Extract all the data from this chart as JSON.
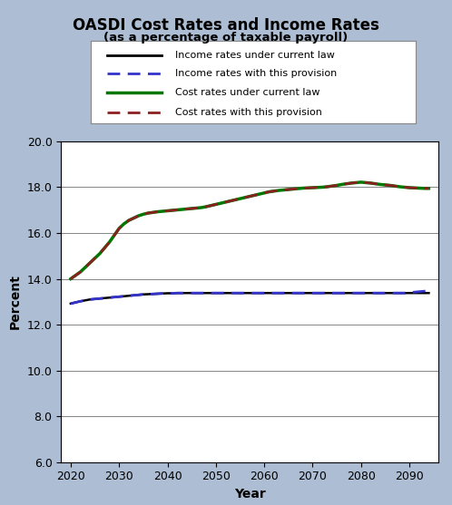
{
  "title": "OASDI Cost Rates and Income Rates",
  "subtitle": "(as a percentage of taxable payroll)",
  "xlabel": "Year",
  "ylabel": "Percent",
  "bg_color": "#adbdd3",
  "plot_bg_color": "#ffffff",
  "ylim": [
    6.0,
    20.0
  ],
  "yticks": [
    6.0,
    8.0,
    10.0,
    12.0,
    14.0,
    16.0,
    18.0,
    20.0
  ],
  "xlim": [
    2018,
    2096
  ],
  "xticks": [
    2020,
    2030,
    2040,
    2050,
    2060,
    2070,
    2080,
    2090
  ],
  "years": [
    2020,
    2021,
    2022,
    2023,
    2024,
    2025,
    2026,
    2027,
    2028,
    2029,
    2030,
    2031,
    2032,
    2033,
    2034,
    2035,
    2036,
    2037,
    2038,
    2039,
    2040,
    2041,
    2042,
    2043,
    2044,
    2045,
    2046,
    2047,
    2048,
    2049,
    2050,
    2051,
    2052,
    2053,
    2054,
    2055,
    2056,
    2057,
    2058,
    2059,
    2060,
    2061,
    2062,
    2063,
    2064,
    2065,
    2066,
    2067,
    2068,
    2069,
    2070,
    2071,
    2072,
    2073,
    2074,
    2075,
    2076,
    2077,
    2078,
    2079,
    2080,
    2081,
    2082,
    2083,
    2084,
    2085,
    2086,
    2087,
    2088,
    2089,
    2090,
    2091,
    2092,
    2093,
    2094
  ],
  "income_current_law": [
    12.92,
    12.97,
    13.02,
    13.06,
    13.1,
    13.12,
    13.14,
    13.16,
    13.18,
    13.2,
    13.22,
    13.24,
    13.26,
    13.28,
    13.3,
    13.32,
    13.33,
    13.34,
    13.35,
    13.36,
    13.37,
    13.37,
    13.38,
    13.38,
    13.38,
    13.38,
    13.38,
    13.38,
    13.38,
    13.38,
    13.38,
    13.38,
    13.38,
    13.38,
    13.38,
    13.38,
    13.38,
    13.38,
    13.38,
    13.38,
    13.38,
    13.38,
    13.38,
    13.38,
    13.38,
    13.38,
    13.38,
    13.38,
    13.38,
    13.38,
    13.38,
    13.38,
    13.38,
    13.38,
    13.38,
    13.38,
    13.38,
    13.38,
    13.38,
    13.38,
    13.38,
    13.38,
    13.38,
    13.38,
    13.38,
    13.38,
    13.38,
    13.38,
    13.38,
    13.38,
    13.38,
    13.38,
    13.38,
    13.38,
    13.38
  ],
  "income_provision": [
    12.92,
    12.97,
    13.02,
    13.06,
    13.1,
    13.12,
    13.14,
    13.16,
    13.18,
    13.2,
    13.22,
    13.24,
    13.26,
    13.28,
    13.3,
    13.32,
    13.33,
    13.34,
    13.35,
    13.36,
    13.37,
    13.37,
    13.38,
    13.38,
    13.38,
    13.38,
    13.38,
    13.38,
    13.38,
    13.38,
    13.38,
    13.38,
    13.38,
    13.38,
    13.38,
    13.38,
    13.38,
    13.38,
    13.38,
    13.38,
    13.38,
    13.38,
    13.38,
    13.38,
    13.38,
    13.38,
    13.38,
    13.38,
    13.38,
    13.38,
    13.38,
    13.38,
    13.38,
    13.38,
    13.38,
    13.38,
    13.38,
    13.38,
    13.38,
    13.38,
    13.38,
    13.38,
    13.38,
    13.38,
    13.38,
    13.38,
    13.38,
    13.38,
    13.38,
    13.38,
    13.4,
    13.42,
    13.44,
    13.46,
    13.48
  ],
  "cost_current_law": [
    14.0,
    14.15,
    14.3,
    14.5,
    14.7,
    14.9,
    15.1,
    15.35,
    15.6,
    15.9,
    16.2,
    16.4,
    16.55,
    16.65,
    16.75,
    16.82,
    16.87,
    16.9,
    16.93,
    16.95,
    16.97,
    16.99,
    17.01,
    17.03,
    17.05,
    17.07,
    17.09,
    17.11,
    17.15,
    17.2,
    17.25,
    17.3,
    17.35,
    17.4,
    17.45,
    17.5,
    17.55,
    17.6,
    17.65,
    17.7,
    17.75,
    17.8,
    17.83,
    17.86,
    17.88,
    17.9,
    17.92,
    17.94,
    17.96,
    17.97,
    17.98,
    17.99,
    18.0,
    18.02,
    18.05,
    18.08,
    18.12,
    18.15,
    18.18,
    18.2,
    18.22,
    18.2,
    18.18,
    18.15,
    18.12,
    18.1,
    18.08,
    18.05,
    18.02,
    18.0,
    17.98,
    17.97,
    17.96,
    17.95,
    17.95
  ],
  "cost_provision": [
    14.0,
    14.15,
    14.3,
    14.5,
    14.7,
    14.9,
    15.1,
    15.35,
    15.6,
    15.9,
    16.2,
    16.4,
    16.55,
    16.65,
    16.75,
    16.82,
    16.87,
    16.9,
    16.93,
    16.95,
    16.97,
    16.99,
    17.01,
    17.03,
    17.05,
    17.07,
    17.09,
    17.11,
    17.15,
    17.2,
    17.25,
    17.3,
    17.35,
    17.4,
    17.45,
    17.5,
    17.55,
    17.6,
    17.65,
    17.7,
    17.75,
    17.8,
    17.83,
    17.86,
    17.88,
    17.9,
    17.92,
    17.94,
    17.96,
    17.97,
    17.98,
    17.99,
    18.0,
    18.02,
    18.05,
    18.08,
    18.12,
    18.15,
    18.18,
    18.2,
    18.22,
    18.2,
    18.18,
    18.15,
    18.12,
    18.1,
    18.08,
    18.05,
    18.02,
    18.0,
    17.98,
    17.97,
    17.96,
    17.95,
    17.95
  ],
  "legend_entries": [
    {
      "label": "Income rates under current law",
      "color": "#000000",
      "linestyle": "solid",
      "linewidth": 2
    },
    {
      "label": "Income rates with this provision",
      "color": "#3333cc",
      "linestyle": "dashed",
      "linewidth": 2
    },
    {
      "label": "Cost rates under current law",
      "color": "#007700",
      "linestyle": "solid",
      "linewidth": 2.5
    },
    {
      "label": "Cost rates with this provision",
      "color": "#8b2020",
      "linestyle": "dashed",
      "linewidth": 2
    }
  ]
}
